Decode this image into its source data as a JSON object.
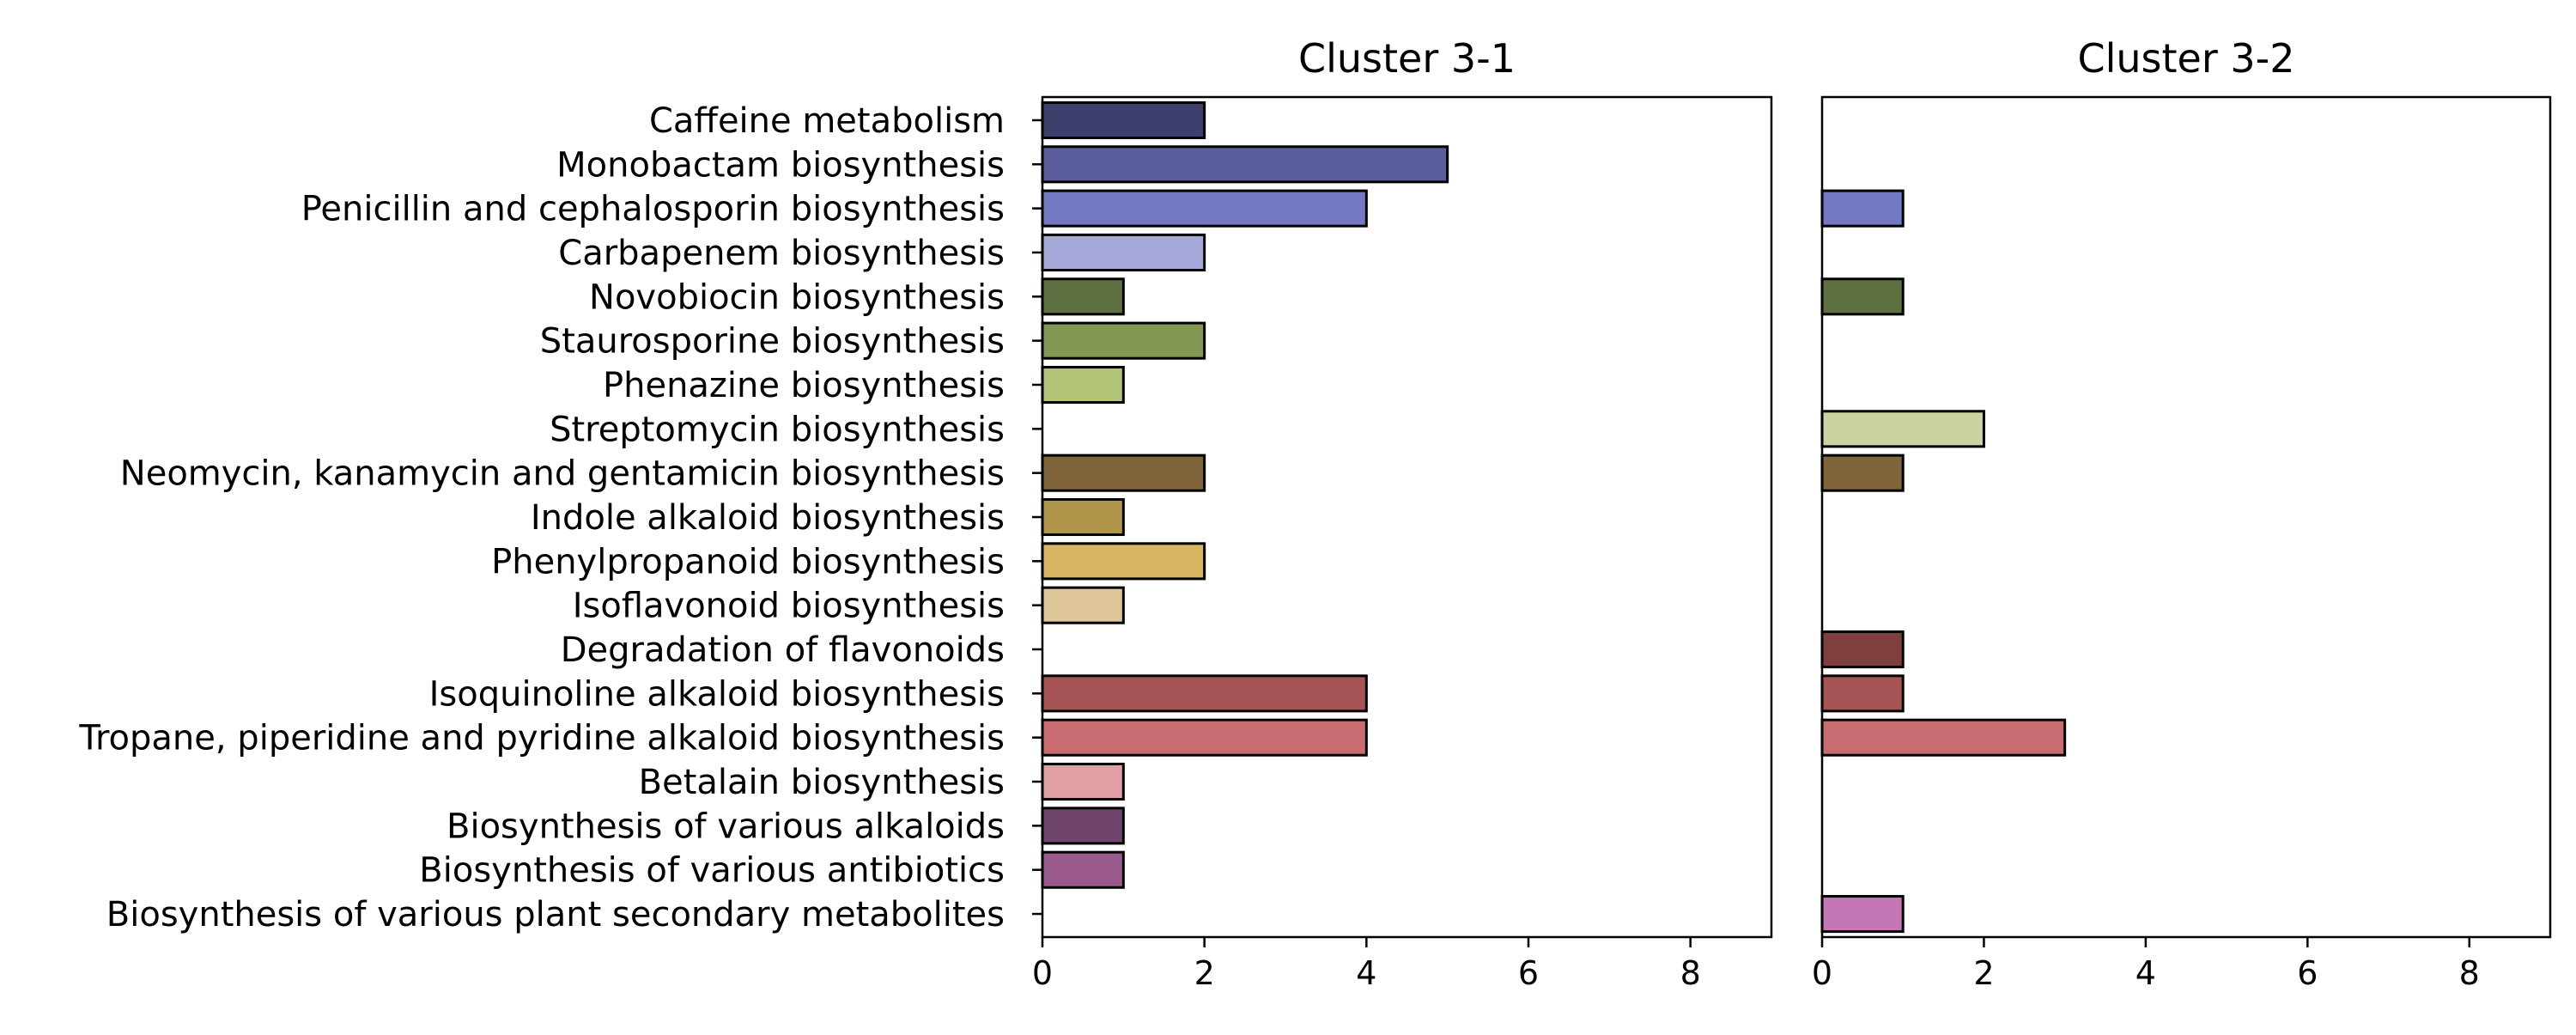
{
  "chart_data": {
    "type": "bar",
    "orientation": "horizontal",
    "categories": [
      "Caffeine metabolism",
      "Monobactam biosynthesis",
      "Penicillin and cephalosporin biosynthesis",
      "Carbapenem biosynthesis",
      "Novobiocin biosynthesis",
      "Staurosporine biosynthesis",
      "Phenazine biosynthesis",
      "Streptomycin biosynthesis",
      "Neomycin, kanamycin and gentamicin biosynthesis",
      "Indole alkaloid biosynthesis",
      "Phenylpropanoid biosynthesis",
      "Isoflavonoid biosynthesis",
      "Degradation of flavonoids",
      "Isoquinoline alkaloid biosynthesis",
      "Tropane, piperidine and pyridine alkaloid biosynthesis",
      "Betalain biosynthesis",
      "Biosynthesis of various alkaloids",
      "Biosynthesis of various antibiotics",
      "Biosynthesis of various plant secondary metabolites"
    ],
    "colors": [
      "#3f3f6e",
      "#5a5c9b",
      "#7479c3",
      "#a6a9d9",
      "#5f7040",
      "#849755",
      "#b0c377",
      "#c9d4a1",
      "#7f6539",
      "#b1954b",
      "#d8b561",
      "#dfc698",
      "#7f3f3f",
      "#a65355",
      "#c96c72",
      "#e0a0a4",
      "#70456c",
      "#9b5a8d",
      "#c476b7"
    ],
    "panels": [
      {
        "title": "Cluster 3-1",
        "values": [
          2,
          5,
          4,
          2,
          1,
          2,
          1,
          0,
          2,
          1,
          2,
          1,
          0,
          4,
          4,
          1,
          1,
          1,
          0
        ]
      },
      {
        "title": "Cluster 3-2",
        "values": [
          0,
          0,
          1,
          0,
          1,
          0,
          0,
          2,
          1,
          0,
          0,
          0,
          1,
          1,
          3,
          0,
          0,
          0,
          1
        ]
      }
    ],
    "xlim": [
      0,
      9
    ],
    "xticks": [
      0,
      2,
      4,
      6,
      8
    ],
    "xtick_labels": [
      "0",
      "2",
      "4",
      "6",
      "8"
    ],
    "xlabel": "",
    "ylabel": "",
    "grid": false,
    "legend": "none"
  }
}
